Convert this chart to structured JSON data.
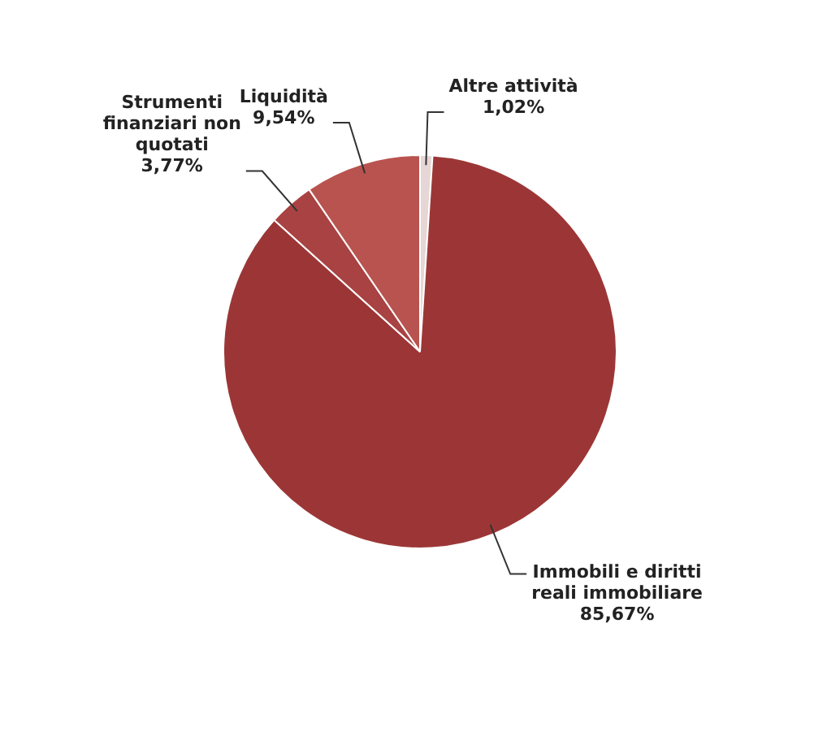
{
  "chart_data": {
    "type": "pie",
    "categories": [
      "Altre attività",
      "Immobili e diritti reali immobiliare",
      "Strumenti finanziari non quotati",
      "Liquidità"
    ],
    "values": [
      1.02,
      85.67,
      3.77,
      9.54
    ],
    "value_labels": [
      "1,02%",
      "85,67%",
      "3,77%",
      "9,54%"
    ],
    "colors": [
      "#e6d6d6",
      "#9c3636",
      "#a94242",
      "#b9534f"
    ],
    "legend": false
  }
}
